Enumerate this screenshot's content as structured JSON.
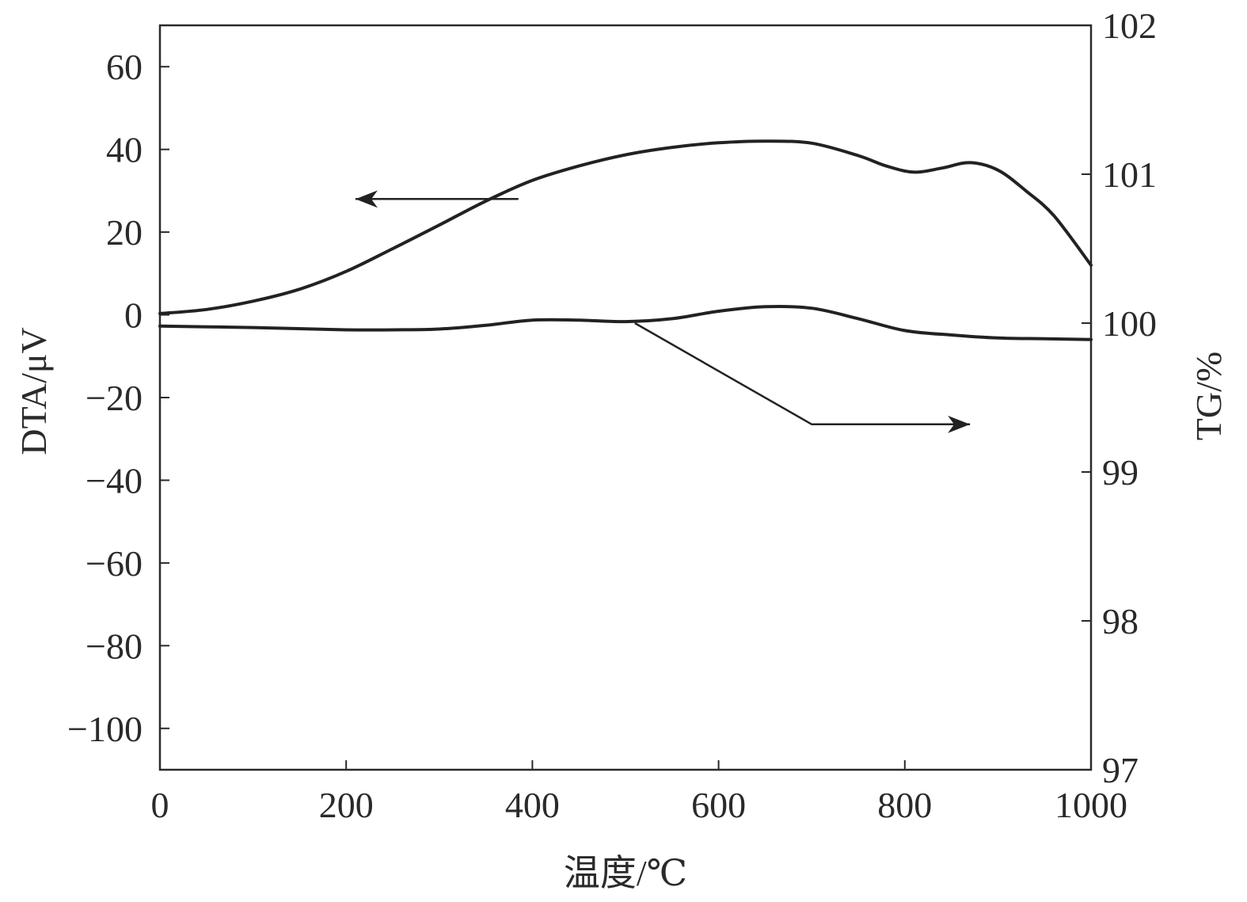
{
  "chart_data": {
    "type": "line",
    "xlabel": "温度/℃",
    "ylabel_left": "DTA/μV",
    "ylabel_right": "TG/%",
    "xlim": [
      0,
      1000
    ],
    "ylim_left": [
      -110,
      70
    ],
    "ylim_right": [
      97,
      102
    ],
    "x_ticks": [
      0,
      200,
      400,
      600,
      800,
      1000
    ],
    "y_left_ticks": [
      60,
      40,
      20,
      0,
      -20,
      -40,
      -60,
      -80,
      -100
    ],
    "y_left_tick_labels": [
      "60",
      "40",
      "20",
      "0",
      "−20",
      "−40",
      "−60",
      "−80",
      "−100"
    ],
    "y_right_ticks": [
      102,
      101,
      100,
      99,
      98,
      97
    ],
    "grid": false,
    "series": [
      {
        "axis": "left",
        "x": [
          0,
          50,
          100,
          150,
          200,
          250,
          300,
          350,
          400,
          450,
          500,
          550,
          600,
          650,
          700,
          750,
          780,
          810,
          840,
          870,
          900,
          930,
          960,
          1000
        ],
        "y": [
          0.3,
          1.3,
          3.3,
          6.2,
          10.5,
          16,
          21.7,
          27.5,
          32.5,
          36,
          38.7,
          40.5,
          41.6,
          42,
          41.5,
          38.5,
          36,
          34.5,
          35.5,
          36.8,
          35,
          30,
          24,
          12
        ]
      },
      {
        "axis": "right",
        "x": [
          0,
          100,
          200,
          250,
          300,
          350,
          400,
          450,
          500,
          550,
          600,
          650,
          700,
          750,
          800,
          850,
          900,
          950,
          1000
        ],
        "y": [
          99.98,
          99.97,
          99.955,
          99.955,
          99.96,
          99.985,
          100.02,
          100.02,
          100.01,
          100.03,
          100.08,
          100.11,
          100.1,
          100.03,
          99.95,
          99.92,
          99.9,
          99.895,
          99.89
        ]
      }
    ],
    "annotations": [
      {
        "type": "arrow",
        "points_to": "left axis",
        "from": [
          385,
          28
        ],
        "to": [
          210,
          28
        ],
        "axis": "left"
      },
      {
        "type": "arrow",
        "points_to": "right axis",
        "from": [
          510,
          100.0
        ],
        "via": [
          700,
          99.32
        ],
        "to": [
          870,
          99.32
        ],
        "axis": "right"
      }
    ]
  }
}
